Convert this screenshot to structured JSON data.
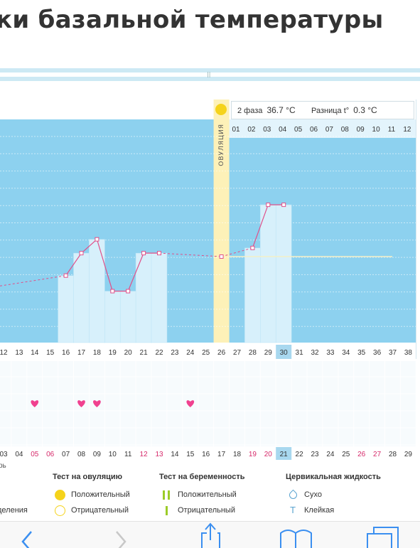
{
  "page_title_fragment": "ки базальной температуры",
  "status": {
    "phase_label": "2 фаза",
    "phase_temp": "36.7 °C",
    "diff_label": "Разница t°",
    "diff_value": "0.3 °C"
  },
  "ovulation_label": "ОВУЛЯЦИЯ",
  "chart_data": {
    "type": "line",
    "cycle_days": [
      "12",
      "13",
      "14",
      "15",
      "16",
      "17",
      "18",
      "19",
      "20",
      "21",
      "22",
      "23",
      "24",
      "25",
      "26",
      "27",
      "28",
      "29",
      "30",
      "31",
      "32",
      "33",
      "34",
      "35",
      "36",
      "37",
      "38"
    ],
    "cycle_days_post_ovulation": [
      "01",
      "02",
      "03",
      "04",
      "05",
      "06",
      "07",
      "08",
      "09",
      "10",
      "11",
      "12"
    ],
    "dates": [
      "03",
      "04",
      "05",
      "06",
      "07",
      "08",
      "09",
      "10",
      "11",
      "12",
      "13",
      "14",
      "15",
      "16",
      "17",
      "18",
      "19",
      "20",
      "21",
      "22",
      "23",
      "24",
      "25",
      "26",
      "27",
      "28",
      "29"
    ],
    "weekend_dates": [
      "05",
      "06",
      "12",
      "13",
      "19",
      "20",
      "26",
      "27"
    ],
    "current_cycle_day": "30",
    "current_date": "21",
    "ovulation_day": "26",
    "series": [
      {
        "x": [
          "16",
          "17",
          "18",
          "19",
          "20",
          "21",
          "22",
          "26",
          "28",
          "29",
          "30"
        ],
        "y": [
          -1.1,
          0.2,
          1.0,
          -2.0,
          -2.0,
          0.2,
          0.2,
          0.0,
          0.5,
          3.0,
          3.0
        ]
      }
    ],
    "coverline_offset_note": "",
    "hearts_dates": [
      "05",
      "08",
      "09",
      "15"
    ],
    "grid": true
  },
  "month_fragment": "рь",
  "legend": {
    "ovulation_test": {
      "title": "Тест на овуляцию",
      "positive": "Положительный",
      "negative": "Отрицательный"
    },
    "pregnancy_test": {
      "title": "Тест на беременность",
      "positive": "Положительный",
      "negative": "Отрицательный"
    },
    "cervical_fluid": {
      "title": "Цервикальная жидкость",
      "dry": "Сухо",
      "sticky": "Клейкая"
    },
    "left_fragment": "деления"
  },
  "icons": {
    "back": "chevron-left-icon",
    "forward": "chevron-right-icon",
    "share": "share-icon",
    "bookmarks": "book-icon",
    "tabs": "tabs-icon"
  },
  "colors": {
    "chart_bg": "#8dd1ef",
    "bar": "#d7f0fb",
    "ovulation": "#fdf1b8",
    "line": "#e0508a",
    "accent": "#4a90d9",
    "weekend": "#d6296a"
  }
}
